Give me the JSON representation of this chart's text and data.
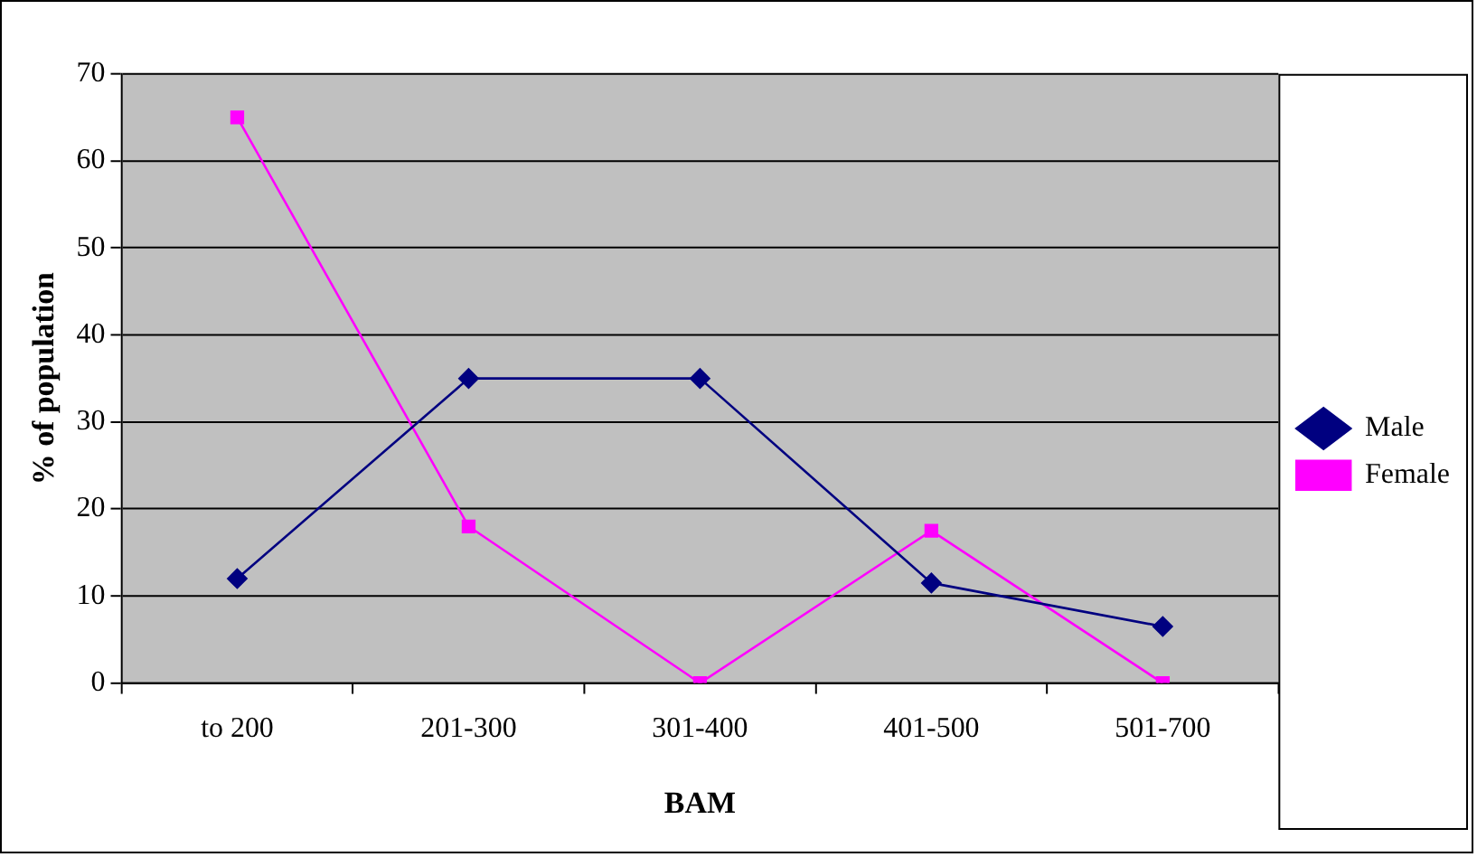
{
  "chart_data": {
    "type": "line",
    "xlabel": "BAM",
    "ylabel": "% of population",
    "categories": [
      "to 200",
      "201-300",
      "301-400",
      "401-500",
      "501-700"
    ],
    "series": [
      {
        "name": "Male",
        "color": "#000080",
        "marker": "diamond",
        "values": [
          12,
          35,
          35,
          11.5,
          6.5
        ]
      },
      {
        "name": "Female",
        "color": "#ff00ff",
        "marker": "square",
        "values": [
          65,
          18,
          0,
          17.5,
          0
        ]
      }
    ],
    "ylim": [
      0,
      70
    ],
    "yticks": [
      0,
      10,
      20,
      30,
      40,
      50,
      60,
      70
    ],
    "grid": "y",
    "legend": "right"
  }
}
